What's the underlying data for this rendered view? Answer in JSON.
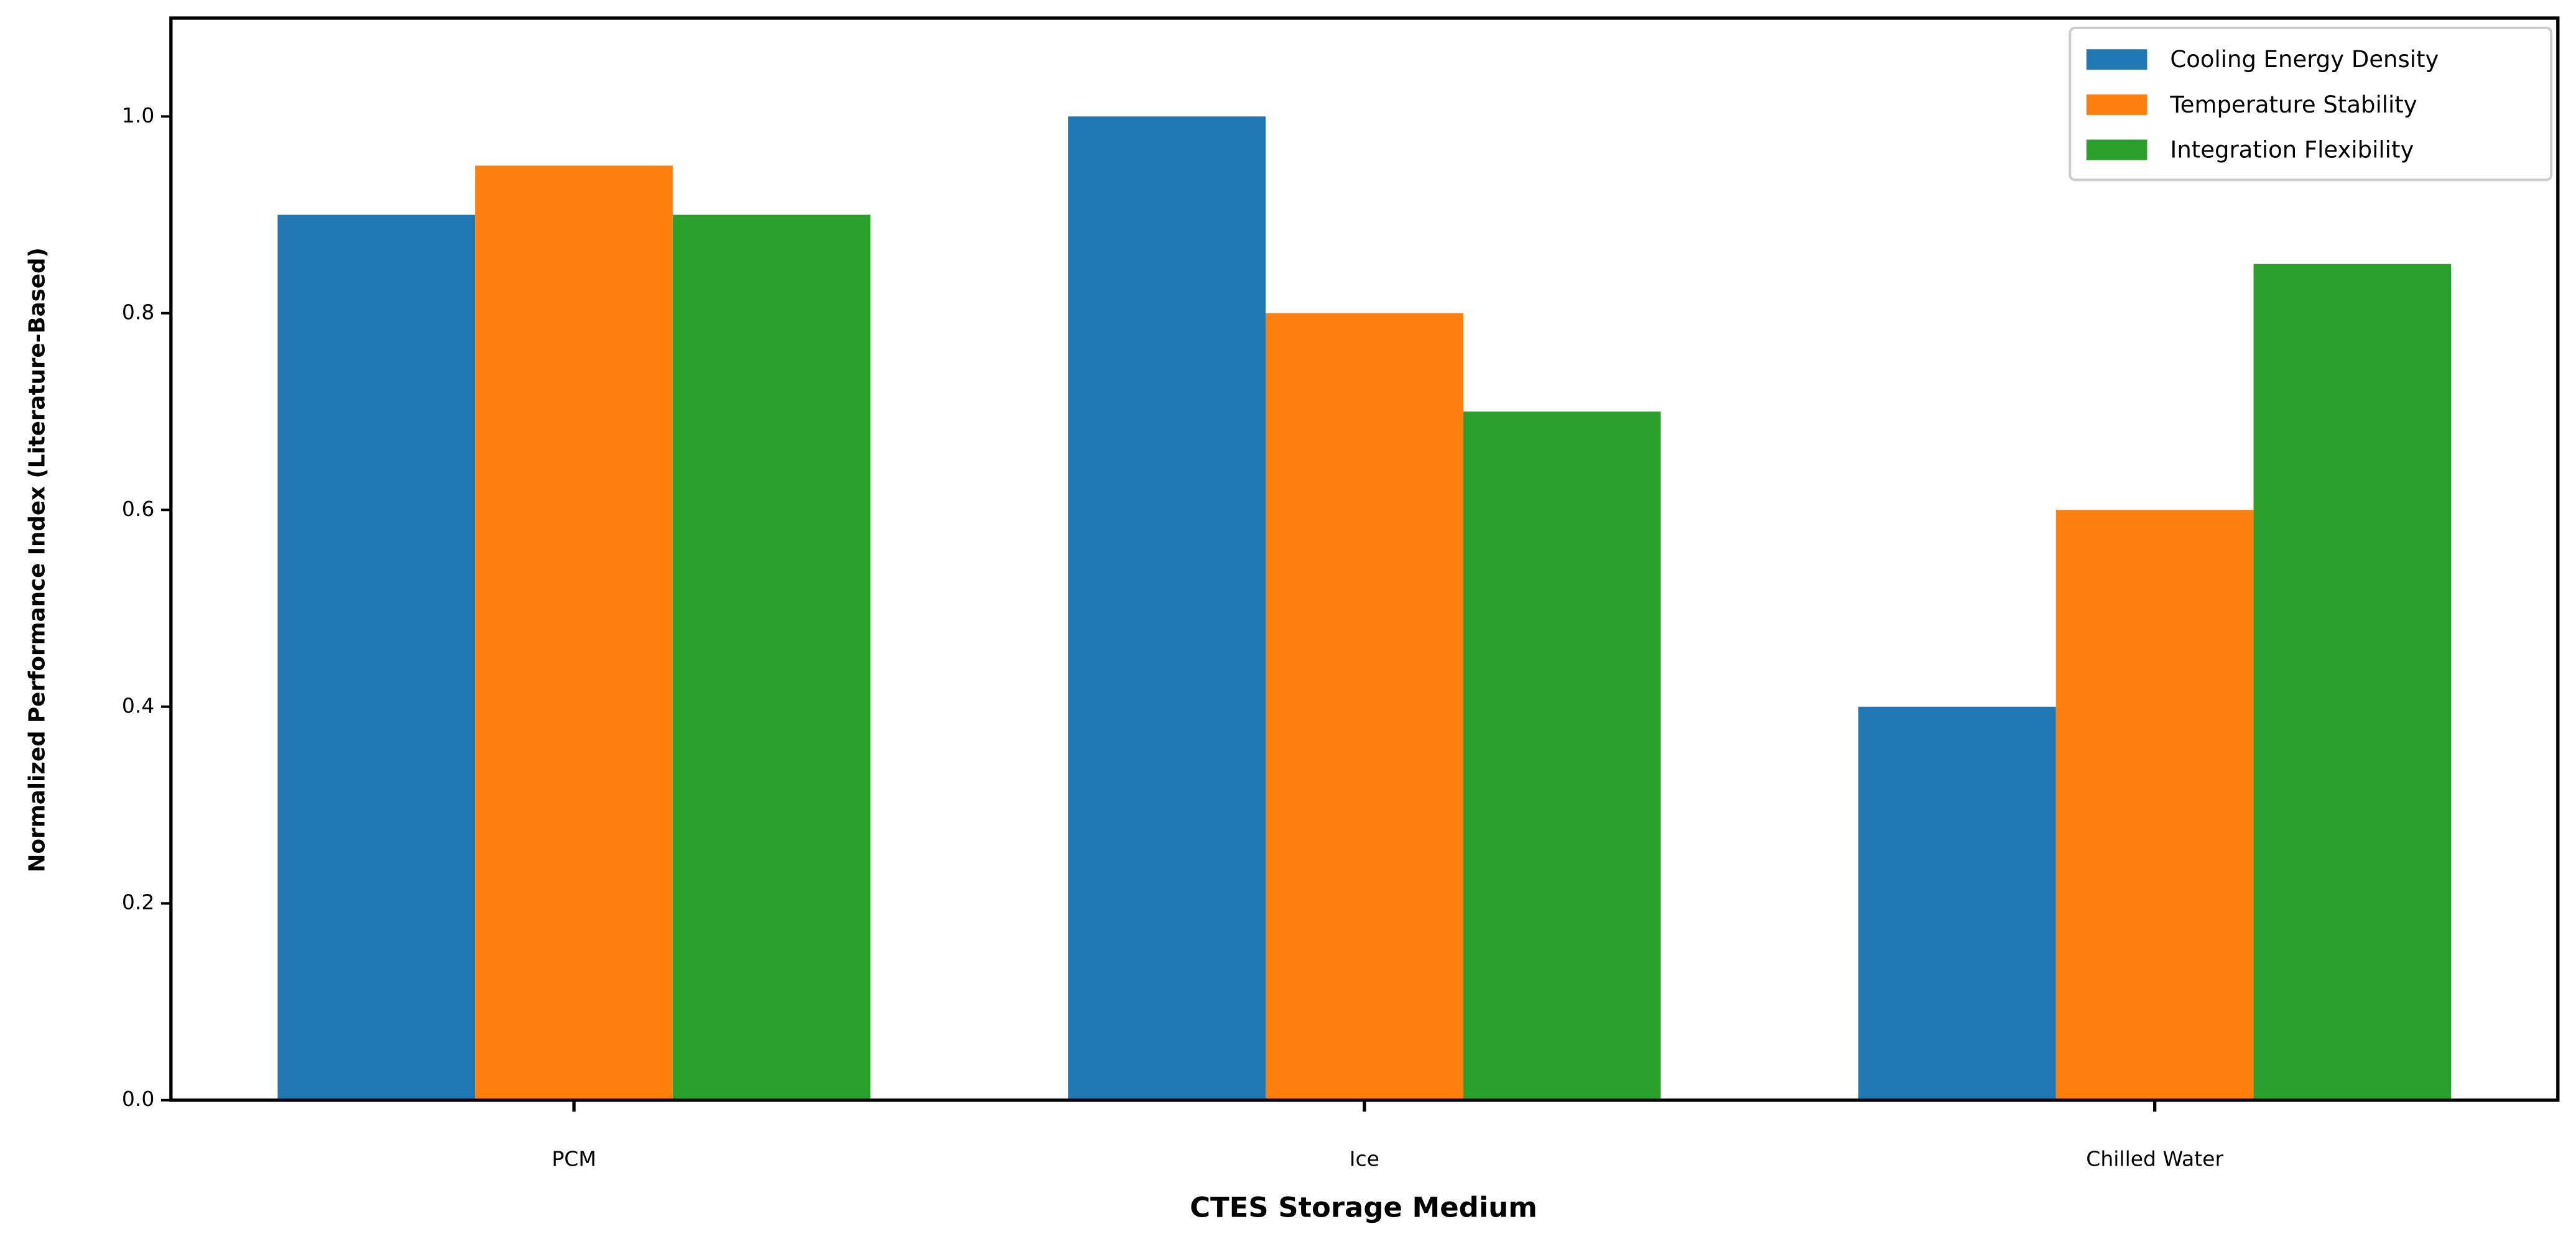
{
  "chart_data": {
    "type": "bar",
    "x_label": "CTES Storage Medium",
    "y_label": "Normalized Performance Index (Literature-Based)",
    "categories": [
      "PCM",
      "Ice",
      "Chilled Water"
    ],
    "series": [
      {
        "name": "Cooling Energy Density",
        "color": "#1f77b4",
        "values": [
          0.9,
          1.0,
          0.4
        ]
      },
      {
        "name": "Temperature Stability",
        "color": "#ff7f0e",
        "values": [
          0.95,
          0.8,
          0.6
        ]
      },
      {
        "name": "Integration Flexibility",
        "color": "#2ca02c",
        "values": [
          0.9,
          0.7,
          0.85
        ]
      }
    ],
    "ylim": [
      0,
      1.1
    ],
    "yticks": [
      {
        "value": 0,
        "label": "0.0"
      },
      {
        "value": 0.2,
        "label": "0.2"
      },
      {
        "value": 0.4,
        "label": "0.4"
      },
      {
        "value": 0.6,
        "label": "0.6"
      },
      {
        "value": 0.8,
        "label": "0.8"
      },
      {
        "value": 1.0,
        "label": "1.0"
      }
    ],
    "legend": "upper right",
    "grid": false
  }
}
